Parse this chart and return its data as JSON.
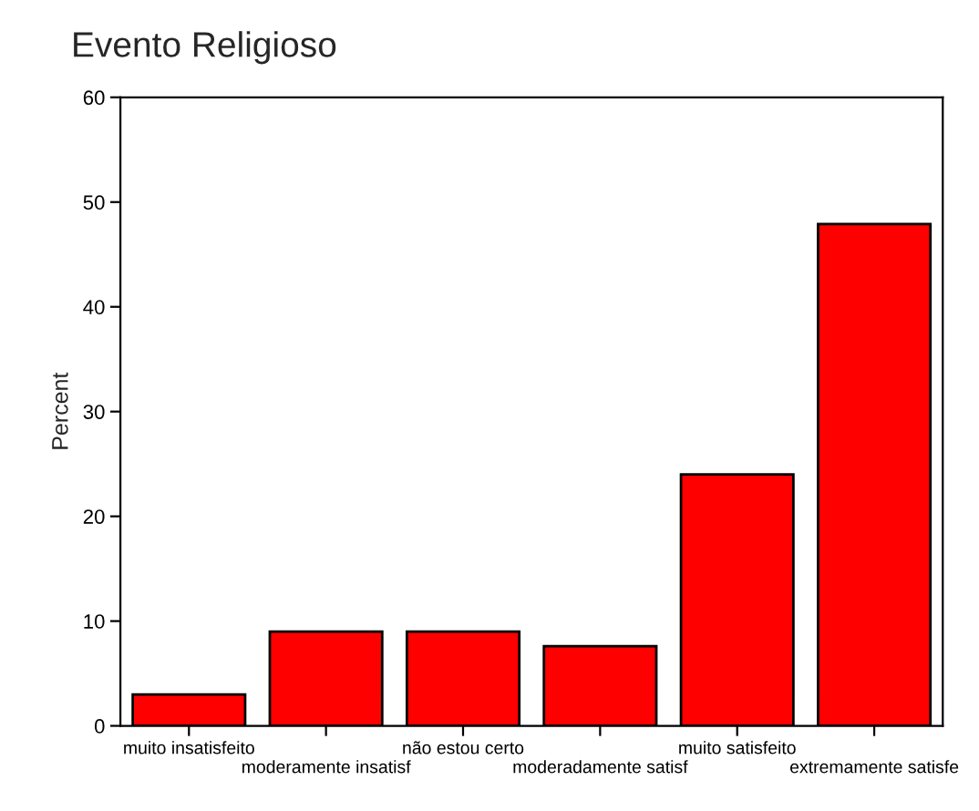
{
  "chart_data": {
    "type": "bar",
    "title": "Evento Religioso",
    "ylabel": "Percent",
    "categories": [
      "muito insatisfeito",
      "moderamente insatisf",
      "não estou certo",
      "moderadamente satisf",
      "muito satisfeito",
      "extremamente satisfe"
    ],
    "values": [
      3.0,
      9.0,
      9.0,
      7.6,
      24.0,
      47.9
    ],
    "color": "#ff0000",
    "ylim": [
      0,
      60
    ],
    "yticks": [
      0,
      10,
      20,
      30,
      40,
      50,
      60
    ],
    "grid": false
  }
}
